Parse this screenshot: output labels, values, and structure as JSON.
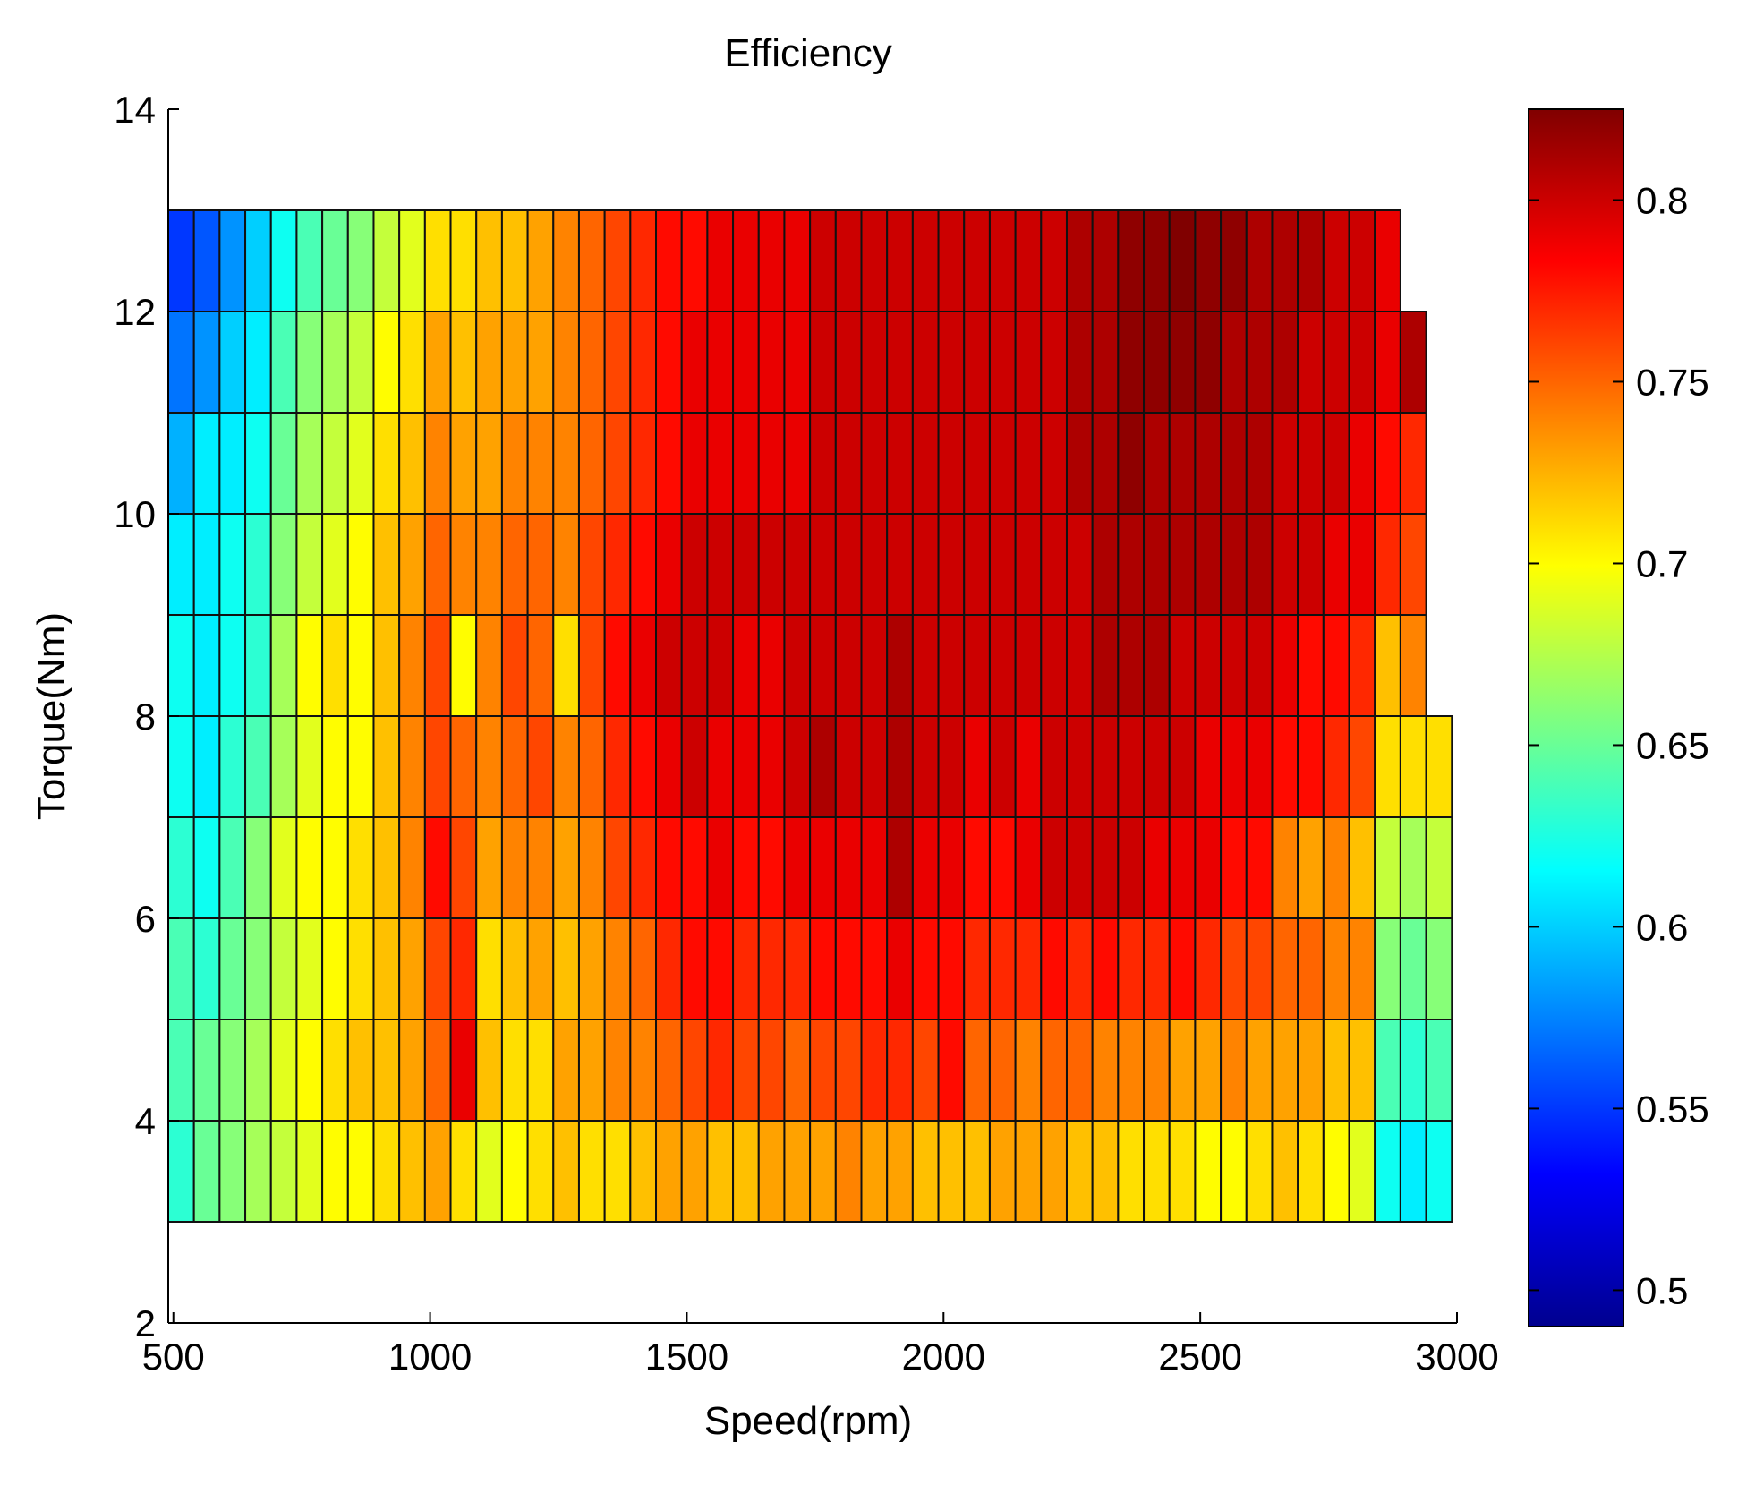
{
  "chart_data": {
    "type": "heatmap",
    "title": "Efficiency",
    "xlabel": "Speed(rpm)",
    "ylabel": "Torque(Nm)",
    "xlim": [
      490,
      3000
    ],
    "ylim": [
      2,
      14
    ],
    "xticks": [
      "500",
      "1000",
      "1500",
      "2000",
      "2500",
      "3000"
    ],
    "yticks": [
      "2",
      "4",
      "6",
      "8",
      "10",
      "12",
      "14"
    ],
    "colorbar": {
      "range": [
        0.49,
        0.825
      ],
      "ticks": [
        "0.5",
        "0.55",
        "0.6",
        "0.65",
        "0.7",
        "0.75",
        "0.8"
      ]
    },
    "grid": {
      "x_start": 490,
      "x_step": 50,
      "y_bands": [
        3,
        4,
        5,
        6,
        7,
        8,
        9,
        10,
        11,
        12,
        13
      ],
      "note": "each row lists efficiency per 50 rpm column starting at 490 rpm"
    },
    "rows": [
      {
        "torque_range": [
          3,
          4
        ],
        "values": [
          0.63,
          0.65,
          0.66,
          0.67,
          0.68,
          0.69,
          0.7,
          0.7,
          0.71,
          0.72,
          0.73,
          0.71,
          0.69,
          0.7,
          0.71,
          0.72,
          0.71,
          0.71,
          0.72,
          0.73,
          0.73,
          0.72,
          0.72,
          0.73,
          0.73,
          0.73,
          0.74,
          0.73,
          0.73,
          0.72,
          0.72,
          0.72,
          0.73,
          0.73,
          0.73,
          0.72,
          0.72,
          0.71,
          0.71,
          0.71,
          0.7,
          0.7,
          0.71,
          0.72,
          0.71,
          0.7,
          0.69,
          0.62,
          0.61,
          0.62
        ]
      },
      {
        "torque_range": [
          4,
          5
        ],
        "values": [
          0.64,
          0.65,
          0.66,
          0.67,
          0.69,
          0.7,
          0.71,
          0.72,
          0.72,
          0.73,
          0.75,
          0.79,
          0.72,
          0.71,
          0.71,
          0.73,
          0.73,
          0.74,
          0.74,
          0.75,
          0.76,
          0.77,
          0.76,
          0.76,
          0.75,
          0.76,
          0.76,
          0.77,
          0.77,
          0.76,
          0.78,
          0.75,
          0.75,
          0.74,
          0.75,
          0.75,
          0.74,
          0.74,
          0.74,
          0.73,
          0.73,
          0.74,
          0.73,
          0.73,
          0.73,
          0.72,
          0.72,
          0.64,
          0.63,
          0.64
        ]
      },
      {
        "torque_range": [
          5,
          6
        ],
        "values": [
          0.64,
          0.63,
          0.65,
          0.66,
          0.68,
          0.69,
          0.7,
          0.71,
          0.72,
          0.73,
          0.76,
          0.77,
          0.71,
          0.72,
          0.73,
          0.72,
          0.73,
          0.74,
          0.75,
          0.77,
          0.78,
          0.78,
          0.77,
          0.77,
          0.77,
          0.78,
          0.78,
          0.78,
          0.79,
          0.78,
          0.78,
          0.77,
          0.77,
          0.77,
          0.78,
          0.77,
          0.78,
          0.77,
          0.77,
          0.78,
          0.77,
          0.76,
          0.76,
          0.75,
          0.75,
          0.74,
          0.74,
          0.66,
          0.65,
          0.66
        ]
      },
      {
        "torque_range": [
          6,
          7
        ],
        "values": [
          0.63,
          0.62,
          0.64,
          0.66,
          0.69,
          0.7,
          0.7,
          0.71,
          0.72,
          0.74,
          0.78,
          0.76,
          0.73,
          0.74,
          0.74,
          0.73,
          0.74,
          0.76,
          0.77,
          0.78,
          0.78,
          0.79,
          0.78,
          0.78,
          0.79,
          0.79,
          0.79,
          0.79,
          0.81,
          0.79,
          0.79,
          0.78,
          0.78,
          0.79,
          0.8,
          0.8,
          0.8,
          0.8,
          0.79,
          0.79,
          0.79,
          0.78,
          0.78,
          0.74,
          0.73,
          0.74,
          0.72,
          0.68,
          0.67,
          0.68
        ]
      },
      {
        "torque_range": [
          7,
          8
        ],
        "values": [
          0.62,
          0.61,
          0.63,
          0.64,
          0.67,
          0.69,
          0.7,
          0.7,
          0.72,
          0.74,
          0.76,
          0.75,
          0.74,
          0.75,
          0.76,
          0.74,
          0.75,
          0.77,
          0.78,
          0.79,
          0.8,
          0.79,
          0.79,
          0.79,
          0.8,
          0.81,
          0.8,
          0.8,
          0.81,
          0.8,
          0.8,
          0.79,
          0.8,
          0.79,
          0.8,
          0.8,
          0.8,
          0.8,
          0.8,
          0.8,
          0.79,
          0.79,
          0.79,
          0.78,
          0.78,
          0.77,
          0.76,
          0.71,
          0.71,
          0.71
        ]
      },
      {
        "torque_range": [
          8,
          9
        ],
        "values": [
          0.62,
          0.61,
          0.62,
          0.63,
          0.67,
          0.7,
          0.71,
          0.7,
          0.72,
          0.74,
          0.76,
          0.7,
          0.74,
          0.76,
          0.75,
          0.71,
          0.76,
          0.78,
          0.79,
          0.8,
          0.8,
          0.8,
          0.79,
          0.79,
          0.8,
          0.8,
          0.8,
          0.8,
          0.81,
          0.8,
          0.8,
          0.8,
          0.8,
          0.8,
          0.8,
          0.8,
          0.81,
          0.81,
          0.81,
          0.8,
          0.8,
          0.8,
          0.8,
          0.79,
          0.78,
          0.78,
          0.77,
          0.72,
          0.74
        ]
      },
      {
        "torque_range": [
          9,
          10
        ],
        "values": [
          0.61,
          0.61,
          0.62,
          0.63,
          0.66,
          0.68,
          0.69,
          0.7,
          0.72,
          0.73,
          0.75,
          0.74,
          0.74,
          0.75,
          0.75,
          0.74,
          0.76,
          0.77,
          0.78,
          0.79,
          0.8,
          0.8,
          0.8,
          0.8,
          0.8,
          0.8,
          0.8,
          0.8,
          0.8,
          0.8,
          0.8,
          0.8,
          0.8,
          0.8,
          0.8,
          0.8,
          0.81,
          0.81,
          0.81,
          0.81,
          0.81,
          0.81,
          0.81,
          0.8,
          0.8,
          0.79,
          0.79,
          0.77,
          0.76
        ]
      },
      {
        "torque_range": [
          10,
          11
        ],
        "values": [
          0.59,
          0.61,
          0.61,
          0.62,
          0.65,
          0.67,
          0.68,
          0.69,
          0.71,
          0.72,
          0.74,
          0.73,
          0.73,
          0.74,
          0.74,
          0.74,
          0.75,
          0.76,
          0.77,
          0.78,
          0.79,
          0.79,
          0.79,
          0.79,
          0.79,
          0.8,
          0.8,
          0.8,
          0.8,
          0.8,
          0.8,
          0.8,
          0.8,
          0.8,
          0.8,
          0.81,
          0.81,
          0.82,
          0.81,
          0.81,
          0.81,
          0.81,
          0.81,
          0.8,
          0.8,
          0.8,
          0.79,
          0.78,
          0.77
        ]
      },
      {
        "torque_range": [
          11,
          12
        ],
        "values": [
          0.57,
          0.58,
          0.6,
          0.61,
          0.64,
          0.66,
          0.67,
          0.68,
          0.7,
          0.71,
          0.73,
          0.72,
          0.73,
          0.73,
          0.73,
          0.74,
          0.75,
          0.76,
          0.77,
          0.78,
          0.79,
          0.79,
          0.79,
          0.79,
          0.79,
          0.8,
          0.8,
          0.8,
          0.8,
          0.8,
          0.8,
          0.8,
          0.8,
          0.8,
          0.8,
          0.81,
          0.81,
          0.82,
          0.82,
          0.82,
          0.82,
          0.81,
          0.81,
          0.81,
          0.8,
          0.8,
          0.8,
          0.79,
          0.81
        ]
      },
      {
        "torque_range": [
          12,
          13
        ],
        "values": [
          0.55,
          0.56,
          0.58,
          0.6,
          0.62,
          0.64,
          0.65,
          0.66,
          0.68,
          0.69,
          0.71,
          0.71,
          0.72,
          0.72,
          0.73,
          0.74,
          0.75,
          0.76,
          0.77,
          0.78,
          0.78,
          0.79,
          0.79,
          0.79,
          0.79,
          0.8,
          0.8,
          0.8,
          0.8,
          0.8,
          0.8,
          0.8,
          0.8,
          0.8,
          0.8,
          0.81,
          0.81,
          0.82,
          0.82,
          0.83,
          0.82,
          0.82,
          0.81,
          0.81,
          0.81,
          0.8,
          0.8,
          0.79
        ]
      }
    ]
  }
}
